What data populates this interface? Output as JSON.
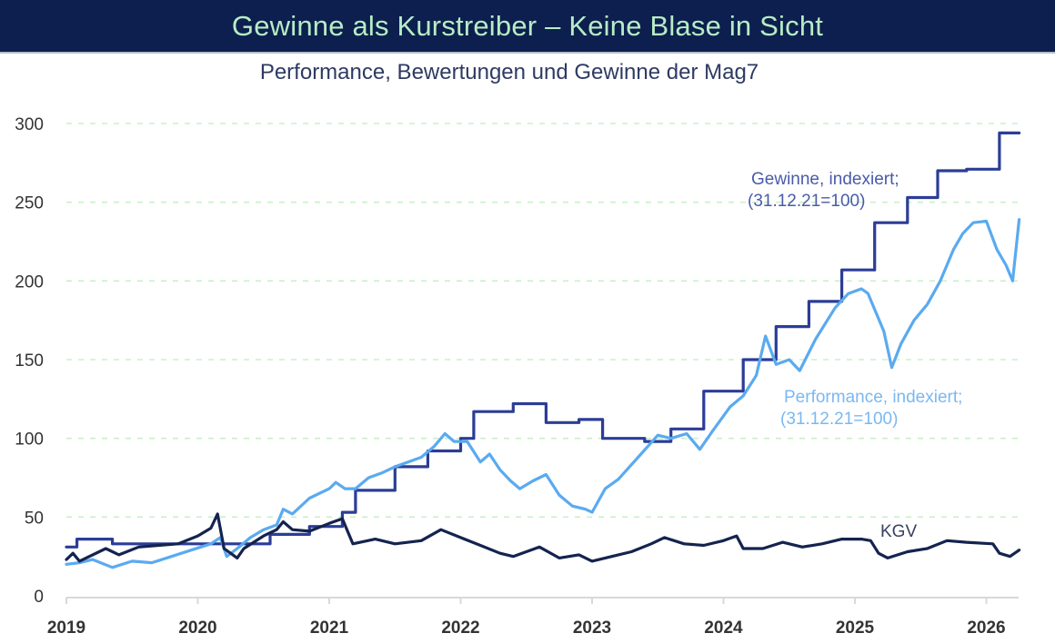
{
  "header": {
    "banner_title": "Gewinne als Kurstreiber – Keine Blase in Sicht",
    "subtitle": "Performance, Bewertungen und Gewinne der Mag7"
  },
  "colors": {
    "banner_bg": "#0d1f4e",
    "banner_text": "#b7ecc6",
    "gewinne": "#2b3d96",
    "performance": "#5aaaf0",
    "kgv": "#14234f",
    "grid": "#c9f0c9"
  },
  "chart_data": {
    "type": "line",
    "title": "Gewinne als Kurstreiber – Keine Blase in Sicht",
    "subtitle": "Performance, Bewertungen und Gewinne der Mag7",
    "xlabel": "",
    "ylabel": "",
    "xlim": [
      2019.0,
      2026.25
    ],
    "ylim": [
      0,
      300
    ],
    "x_ticks": [
      2019,
      2020,
      2021,
      2022,
      2023,
      2024,
      2025,
      2026
    ],
    "x_tick_labels": [
      "2019",
      "2020",
      "2021",
      "2022",
      "2023",
      "2024",
      "2025",
      "2026"
    ],
    "y_ticks": [
      0,
      50,
      100,
      150,
      200,
      250,
      300
    ],
    "y_tick_labels": [
      "0",
      "50",
      "100",
      "150",
      "200",
      "250",
      "300"
    ],
    "grid": "horizontal dashed",
    "series": [
      {
        "name": "Gewinne",
        "annotation": [
          "Gewinne, indexiert;",
          "(31.12.21=100)"
        ],
        "step": true,
        "points": [
          [
            2019.0,
            31
          ],
          [
            2019.08,
            36
          ],
          [
            2019.35,
            33
          ],
          [
            2019.85,
            33
          ],
          [
            2020.25,
            33
          ],
          [
            2020.55,
            39
          ],
          [
            2020.85,
            44
          ],
          [
            2021.1,
            53
          ],
          [
            2021.2,
            67
          ],
          [
            2021.5,
            82
          ],
          [
            2021.75,
            92
          ],
          [
            2022.0,
            100
          ],
          [
            2022.1,
            117
          ],
          [
            2022.4,
            122
          ],
          [
            2022.65,
            110
          ],
          [
            2022.9,
            112
          ],
          [
            2023.08,
            100
          ],
          [
            2023.4,
            98
          ],
          [
            2023.6,
            106
          ],
          [
            2023.85,
            130
          ],
          [
            2024.15,
            150
          ],
          [
            2024.4,
            171
          ],
          [
            2024.65,
            187
          ],
          [
            2024.9,
            207
          ],
          [
            2025.15,
            237
          ],
          [
            2025.4,
            253
          ],
          [
            2025.63,
            270
          ],
          [
            2025.85,
            271
          ],
          [
            2026.1,
            294
          ],
          [
            2026.25,
            294
          ]
        ]
      },
      {
        "name": "Performance",
        "annotation": [
          "Performance, indexiert;",
          "(31.12.21=100)"
        ],
        "step": false,
        "points": [
          [
            2019.0,
            20
          ],
          [
            2019.1,
            21
          ],
          [
            2019.2,
            23
          ],
          [
            2019.35,
            18
          ],
          [
            2019.5,
            22
          ],
          [
            2019.65,
            21
          ],
          [
            2019.8,
            25
          ],
          [
            2019.95,
            29
          ],
          [
            2020.1,
            33
          ],
          [
            2020.17,
            37
          ],
          [
            2020.22,
            25
          ],
          [
            2020.3,
            30
          ],
          [
            2020.4,
            37
          ],
          [
            2020.5,
            42
          ],
          [
            2020.6,
            45
          ],
          [
            2020.65,
            55
          ],
          [
            2020.72,
            52
          ],
          [
            2020.85,
            62
          ],
          [
            2021.0,
            68
          ],
          [
            2021.05,
            72
          ],
          [
            2021.12,
            68
          ],
          [
            2021.2,
            68
          ],
          [
            2021.3,
            75
          ],
          [
            2021.4,
            78
          ],
          [
            2021.5,
            82
          ],
          [
            2021.6,
            85
          ],
          [
            2021.7,
            88
          ],
          [
            2021.8,
            95
          ],
          [
            2021.88,
            103
          ],
          [
            2021.95,
            98
          ],
          [
            2022.05,
            98
          ],
          [
            2022.15,
            85
          ],
          [
            2022.22,
            90
          ],
          [
            2022.3,
            80
          ],
          [
            2022.38,
            73
          ],
          [
            2022.45,
            68
          ],
          [
            2022.55,
            73
          ],
          [
            2022.65,
            77
          ],
          [
            2022.75,
            64
          ],
          [
            2022.85,
            57
          ],
          [
            2022.95,
            55
          ],
          [
            2023.0,
            53
          ],
          [
            2023.1,
            68
          ],
          [
            2023.2,
            74
          ],
          [
            2023.35,
            88
          ],
          [
            2023.5,
            102
          ],
          [
            2023.6,
            100
          ],
          [
            2023.72,
            103
          ],
          [
            2023.82,
            93
          ],
          [
            2023.92,
            105
          ],
          [
            2024.05,
            120
          ],
          [
            2024.15,
            127
          ],
          [
            2024.25,
            140
          ],
          [
            2024.32,
            165
          ],
          [
            2024.4,
            147
          ],
          [
            2024.5,
            150
          ],
          [
            2024.58,
            143
          ],
          [
            2024.7,
            163
          ],
          [
            2024.85,
            183
          ],
          [
            2024.95,
            192
          ],
          [
            2025.05,
            195
          ],
          [
            2025.1,
            192
          ],
          [
            2025.22,
            168
          ],
          [
            2025.28,
            145
          ],
          [
            2025.35,
            160
          ],
          [
            2025.45,
            175
          ],
          [
            2025.55,
            185
          ],
          [
            2025.65,
            200
          ],
          [
            2025.75,
            220
          ],
          [
            2025.82,
            230
          ],
          [
            2025.9,
            237
          ],
          [
            2026.0,
            238
          ],
          [
            2026.08,
            220
          ],
          [
            2026.15,
            210
          ],
          [
            2026.2,
            200
          ],
          [
            2026.25,
            239
          ]
        ]
      },
      {
        "name": "KGV",
        "annotation": [
          "KGV"
        ],
        "step": false,
        "points": [
          [
            2019.0,
            23
          ],
          [
            2019.05,
            27
          ],
          [
            2019.1,
            22
          ],
          [
            2019.3,
            30
          ],
          [
            2019.4,
            26
          ],
          [
            2019.55,
            31
          ],
          [
            2019.7,
            32
          ],
          [
            2019.85,
            33
          ],
          [
            2020.0,
            38
          ],
          [
            2020.1,
            43
          ],
          [
            2020.15,
            52
          ],
          [
            2020.2,
            30
          ],
          [
            2020.3,
            24
          ],
          [
            2020.35,
            30
          ],
          [
            2020.5,
            38
          ],
          [
            2020.6,
            42
          ],
          [
            2020.65,
            47
          ],
          [
            2020.72,
            42
          ],
          [
            2020.85,
            41
          ],
          [
            2021.0,
            46
          ],
          [
            2021.1,
            49
          ],
          [
            2021.18,
            33
          ],
          [
            2021.35,
            36
          ],
          [
            2021.5,
            33
          ],
          [
            2021.7,
            35
          ],
          [
            2021.85,
            42
          ],
          [
            2022.0,
            37
          ],
          [
            2022.15,
            32
          ],
          [
            2022.3,
            27
          ],
          [
            2022.4,
            25
          ],
          [
            2022.6,
            31
          ],
          [
            2022.75,
            24
          ],
          [
            2022.9,
            26
          ],
          [
            2023.0,
            22
          ],
          [
            2023.15,
            25
          ],
          [
            2023.3,
            28
          ],
          [
            2023.45,
            33
          ],
          [
            2023.55,
            37
          ],
          [
            2023.7,
            33
          ],
          [
            2023.85,
            32
          ],
          [
            2024.0,
            35
          ],
          [
            2024.1,
            38
          ],
          [
            2024.15,
            30
          ],
          [
            2024.3,
            30
          ],
          [
            2024.45,
            34
          ],
          [
            2024.6,
            31
          ],
          [
            2024.75,
            33
          ],
          [
            2024.9,
            36
          ],
          [
            2025.05,
            36
          ],
          [
            2025.12,
            35
          ],
          [
            2025.18,
            27
          ],
          [
            2025.25,
            24
          ],
          [
            2025.4,
            28
          ],
          [
            2025.55,
            30
          ],
          [
            2025.7,
            35
          ],
          [
            2025.85,
            34
          ],
          [
            2026.05,
            33
          ],
          [
            2026.1,
            27
          ],
          [
            2026.18,
            25
          ],
          [
            2026.25,
            29
          ]
        ]
      }
    ]
  }
}
